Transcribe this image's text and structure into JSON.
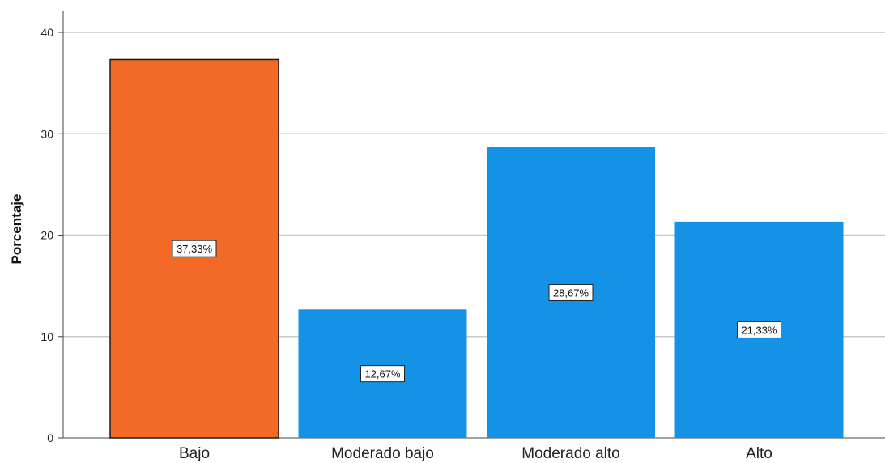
{
  "chart_data": {
    "type": "bar",
    "ylabel": "Porcentaje",
    "xlabel": "",
    "ylim": [
      0,
      40
    ],
    "yticks": [
      0,
      10,
      20,
      30,
      40
    ],
    "grid": true,
    "categories": [
      "Bajo",
      "Moderado bajo",
      "Moderado alto",
      "Alto"
    ],
    "values": [
      37.33,
      12.67,
      28.67,
      21.33
    ],
    "data_labels": [
      "37,33%",
      "12,67%",
      "28,67%",
      "21,33%"
    ],
    "colors": [
      "#f26a26",
      "#1493e6",
      "#1493e6",
      "#1493e6"
    ],
    "highlight_border": "#1a1a1a"
  }
}
